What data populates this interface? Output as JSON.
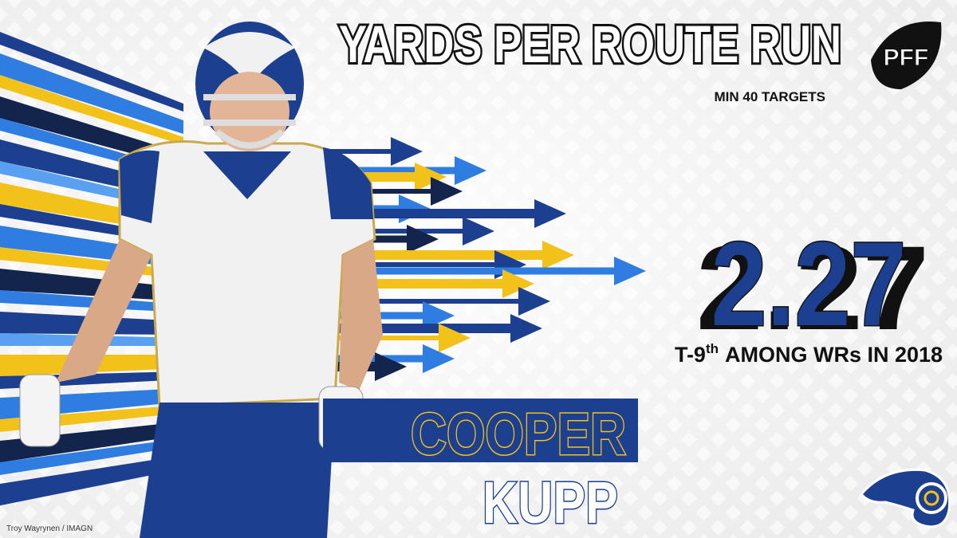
{
  "header": {
    "title": "YARDS PER ROUTE RUN",
    "subtitle": "MIN 40 TARGETS",
    "logo": "PFF"
  },
  "stat": {
    "value": 2.27,
    "rank": "T-9",
    "rank_suffix": "th",
    "description": "AMONG WRs IN 2018"
  },
  "player": {
    "first_name": "COOPER",
    "last_name": "KUPP"
  },
  "credit": "Troy Wayrynen / IMAGN"
}
